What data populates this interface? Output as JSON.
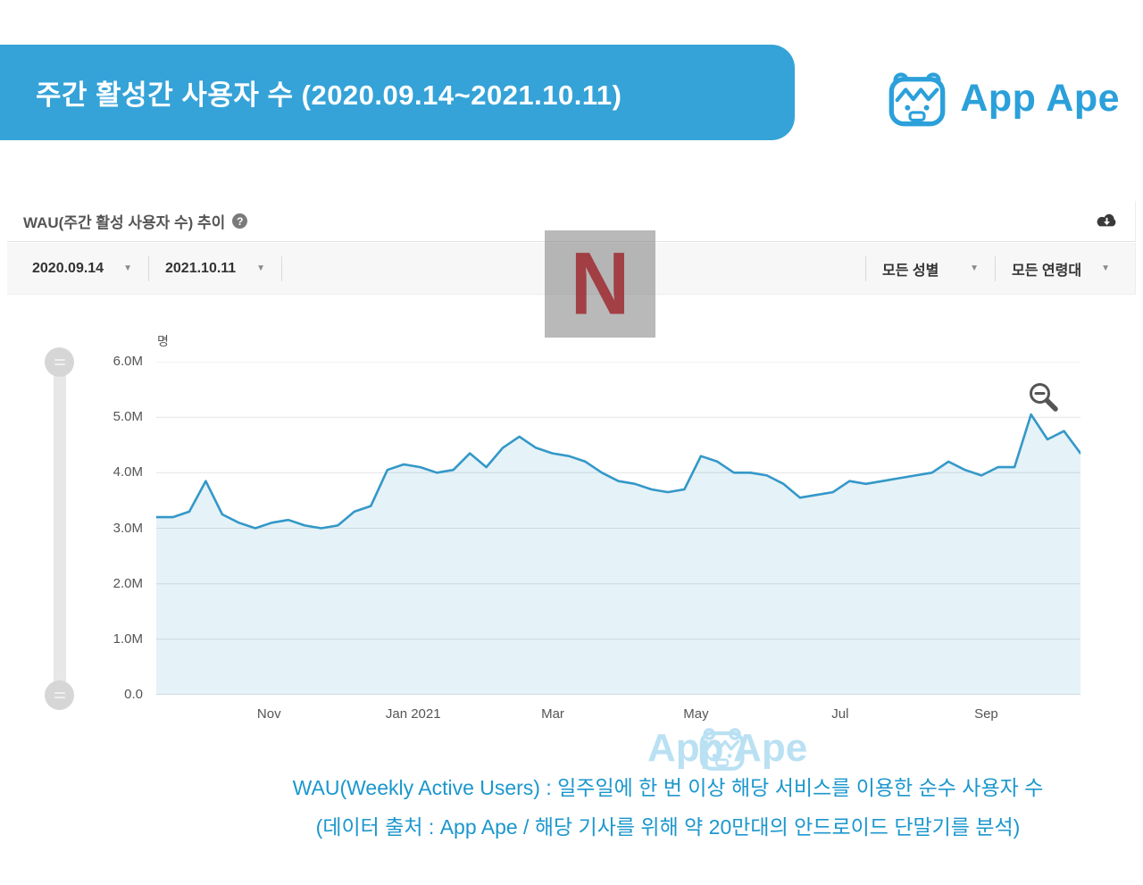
{
  "banner": {
    "title": "주간 활성간 사용자 수 (2020.09.14~2021.10.11)"
  },
  "brand": {
    "name": "App Ape",
    "color": "#2ba0da"
  },
  "panel": {
    "title": "WAU(주간 활성 사용자 수) 추이",
    "help_glyph": "?"
  },
  "filters": {
    "start_date": "2020.09.14",
    "end_date": "2021.10.11",
    "gender": "모든 성별",
    "age_group": "모든 연령대",
    "caret_glyph": "▼"
  },
  "watermarks": {
    "center_logo_text": "App Ape",
    "overlay_letter": "N"
  },
  "footer": {
    "line1": "WAU(Weekly Active Users) : 일주일에 한 번 이상 해당 서비스를 이용한 순수 사용자 수",
    "line2": "(데이터 출처 : App Ape / 해당 기사를 위해 약 20만대의 안드로이드 단말기를 분석)"
  },
  "chart_data": {
    "type": "area",
    "title": "WAU(주간 활성 사용자 수) 추이",
    "unit": "명",
    "x_start": "2020.09.14",
    "x_end": "2021.10.11",
    "interval": "weekly",
    "y_max_millions": 6,
    "ylim": [
      0,
      6000000
    ],
    "grid": true,
    "legend": "none",
    "y_ticks": [
      "6.0M",
      "5.0M",
      "4.0M",
      "3.0M",
      "2.0M",
      "1.0M",
      "0.0"
    ],
    "x_ticks": [
      {
        "label": "Nov",
        "pos": 0.122
      },
      {
        "label": "Jan 2021",
        "pos": 0.278
      },
      {
        "label": "Mar",
        "pos": 0.429
      },
      {
        "label": "May",
        "pos": 0.584
      },
      {
        "label": "Jul",
        "pos": 0.74
      },
      {
        "label": "Sep",
        "pos": 0.898
      }
    ],
    "values_unit": "millions of users (명)",
    "values_millions": [
      3.2,
      3.2,
      3.3,
      3.85,
      3.25,
      3.1,
      3.0,
      3.1,
      3.15,
      3.05,
      3.0,
      3.05,
      3.3,
      3.4,
      4.05,
      4.15,
      4.1,
      4.0,
      4.05,
      4.35,
      4.1,
      4.45,
      4.65,
      4.45,
      4.35,
      4.3,
      4.2,
      4.0,
      3.85,
      3.8,
      3.7,
      3.65,
      3.7,
      4.3,
      4.2,
      4.0,
      4.0,
      3.95,
      3.8,
      3.55,
      3.6,
      3.65,
      3.85,
      3.8,
      3.85,
      3.9,
      3.95,
      4.0,
      4.2,
      4.05,
      3.95,
      4.1,
      4.1,
      5.05,
      4.6,
      4.75,
      4.35
    ],
    "line_color": "#3498c8",
    "area_color": "rgba(52,152,200,0.13)",
    "grid_color": "#e4e4e4",
    "baseline_color": "#cfcfcf"
  }
}
